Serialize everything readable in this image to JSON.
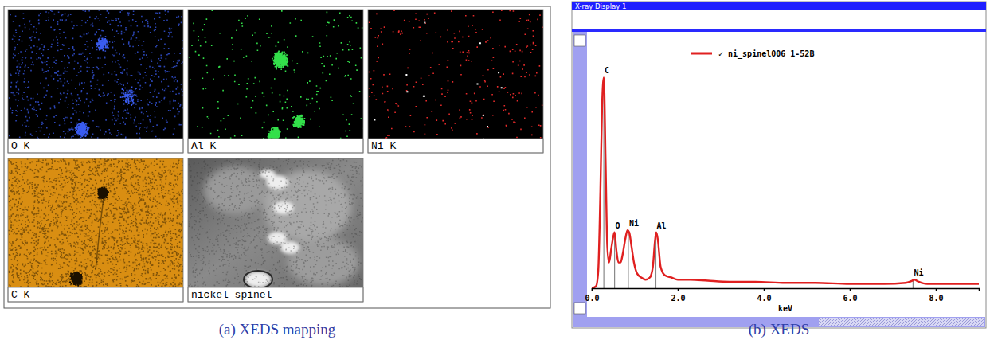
{
  "figure": {
    "mapping": {
      "caption": "(a) XEDS mapping",
      "tiles": [
        {
          "label": "O K",
          "color": "#3a5cf0"
        },
        {
          "label": "Al K",
          "color": "#33e04a"
        },
        {
          "label": "Ni K",
          "color": "#e52a2a"
        },
        {
          "label": "C K",
          "color": "#d98e12"
        },
        {
          "label": "nickel_spinel",
          "color": "#8a8a8a"
        }
      ]
    },
    "spectrum_caption": "(b) XEDS",
    "window_title": "X-ray Display 1"
  },
  "chart_data": {
    "type": "line",
    "x": [
      0.0,
      0.1,
      0.15,
      0.2,
      0.24,
      0.28,
      0.32,
      0.36,
      0.4,
      0.45,
      0.5,
      0.53,
      0.57,
      0.62,
      0.67,
      0.72,
      0.78,
      0.83,
      0.87,
      0.92,
      0.98,
      1.05,
      1.15,
      1.25,
      1.35,
      1.42,
      1.47,
      1.5,
      1.54,
      1.6,
      1.7,
      1.85,
      2.0,
      2.3,
      2.7,
      3.2,
      3.8,
      4.5,
      5.2,
      6.0,
      6.8,
      7.3,
      7.45,
      7.5,
      7.6,
      7.8,
      8.2,
      8.6,
      9.0
    ],
    "series": [
      {
        "name": "✓ ni_spinel006 1-52B",
        "color": "#e02020",
        "values": [
          0,
          1,
          8,
          45,
          85,
          98,
          60,
          20,
          12,
          18,
          24,
          26,
          18,
          12,
          12,
          16,
          23,
          27,
          26,
          20,
          12,
          7,
          5,
          4,
          5,
          10,
          22,
          26,
          22,
          10,
          6,
          5,
          4,
          4,
          3.5,
          3,
          3,
          2.5,
          2.5,
          2,
          2,
          2.5,
          3.5,
          4,
          3,
          2,
          2,
          2,
          2
        ]
      }
    ],
    "x_label": "keV",
    "xlim": [
      0,
      9
    ],
    "xticks": [
      {
        "value": 0,
        "label": "0.0"
      },
      {
        "value": 2,
        "label": "2.0"
      },
      {
        "value": 4,
        "label": "4.0"
      },
      {
        "value": 6,
        "label": "6.0"
      },
      {
        "value": 8,
        "label": "8.0"
      }
    ],
    "ylim": [
      0,
      100
    ],
    "tick_labels": "x",
    "legend": "top",
    "annotations": [
      {
        "text": "C",
        "x": 0.28,
        "y": 98
      },
      {
        "text": "O",
        "x": 0.53,
        "y": 26
      },
      {
        "text": "Ni",
        "x": 0.85,
        "y": 27
      },
      {
        "text": "Al",
        "x": 1.49,
        "y": 26
      },
      {
        "text": "Ni",
        "x": 7.47,
        "y": 4
      }
    ]
  }
}
